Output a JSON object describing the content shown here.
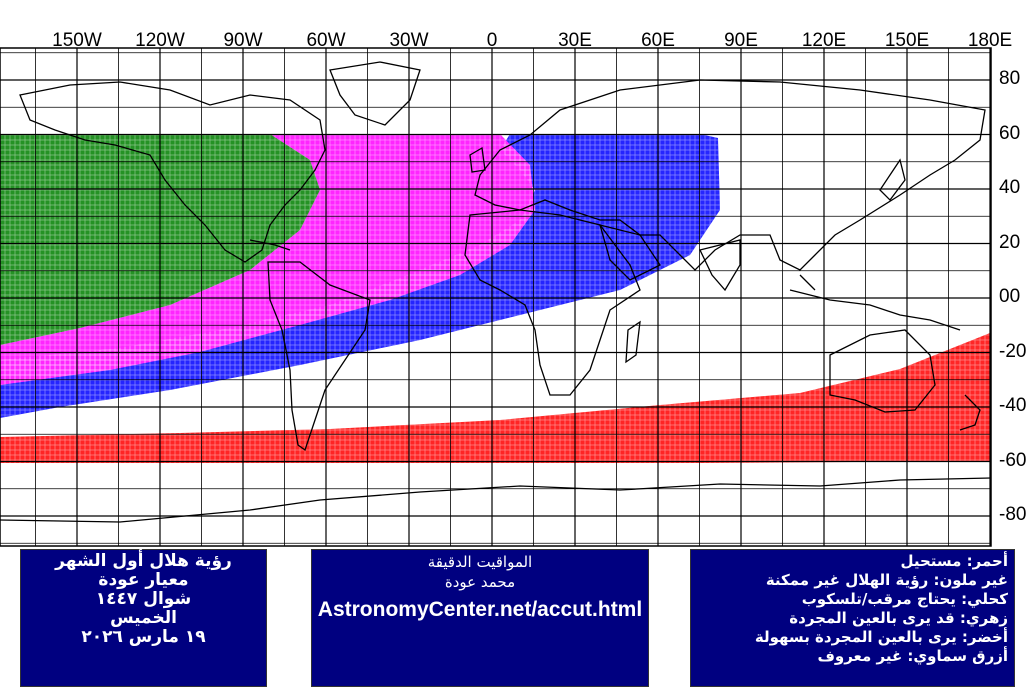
{
  "map": {
    "lon_labels": [
      "150W",
      "120W",
      "90W",
      "60W",
      "30W",
      "0",
      "30E",
      "60E",
      "90E",
      "120E",
      "150E",
      "180E"
    ],
    "lon_values": [
      -150,
      -120,
      -90,
      -60,
      -30,
      0,
      30,
      60,
      90,
      120,
      150,
      180
    ],
    "lat_labels": [
      "80",
      "60",
      "40",
      "20",
      "00",
      "-20",
      "-40",
      "-60",
      "-80"
    ],
    "lat_values": [
      80,
      60,
      40,
      20,
      0,
      -20,
      -40,
      -60,
      -80
    ],
    "zone_colors": {
      "red": "#ff0000",
      "none": "#ffffff",
      "blue": "#0000ff",
      "magenta": "#ff00ff",
      "green": "#008000",
      "cyan": "#00ffff"
    }
  },
  "info_left": {
    "title": "رؤية هلال أول الشهر",
    "criterion": "معيار عودة",
    "month": "شوال ١٤٤٧",
    "weekday": "الخميس",
    "date": "١٩ مارس ٢٠٢٦"
  },
  "info_mid": {
    "heading": "المواقيت الدقيقة",
    "author": "محمد عودة",
    "url": "AstronomyCenter.net/accut.html"
  },
  "legend": {
    "red": "أحمر: مستحيل",
    "uncolored": "غير ملون: رؤية الهلال غير ممكنة",
    "blue": "كحلي: يحتاج مرقب/تلسكوب",
    "magenta": "زهري: قد يرى بالعين المجردة",
    "green": "أخضر: يرى بالعين المجردة بسهولة",
    "cyan": "أزرق سماوي: غير معروف"
  }
}
